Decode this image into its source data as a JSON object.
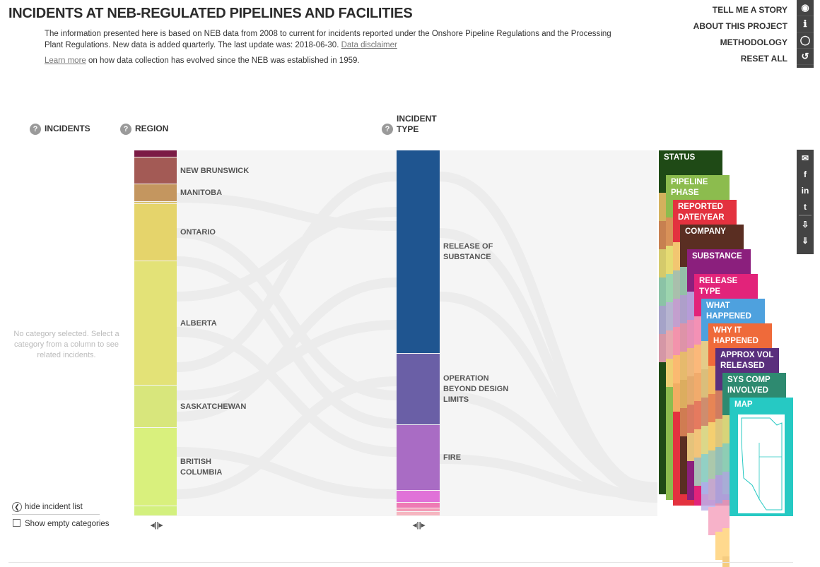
{
  "header": {
    "title": "INCIDENTS AT NEB-REGULATED PIPELINES AND FACILITIES",
    "intro_text": "The information presented here is based on NEB data from 2008 to current for incidents reported under the Onshore Pipeline Regulations and the Processing Plant Regulations. New data is added quarterly. The last update was: 2018-06-30.",
    "disclaimer_link": "Data disclaimer",
    "learn_more_link": "Learn more",
    "learn_more_text": "on how data collection has evolved since the NEB was established in 1959."
  },
  "topnav": {
    "story": "TELL ME A STORY",
    "about": "ABOUT THIS PROJECT",
    "methodology": "METHODOLOGY",
    "reset": "RESET ALL"
  },
  "top_icons": [
    "eye-icon",
    "info-icon",
    "ring-icon",
    "reset-icon"
  ],
  "share_icons": [
    "email-icon",
    "facebook-icon",
    "linkedin-icon",
    "twitter-icon",
    "download-image-icon",
    "download-data-icon"
  ],
  "columns": {
    "incidents": "INCIDENTS",
    "region": "REGION",
    "incident_type": "INCIDENT\nTYPE"
  },
  "incident_list": {
    "empty_message": "No category selected. Select a category from a column to see related incidents.",
    "hide_label": "hide incident list",
    "show_empty_label": "Show empty categories"
  },
  "regions": [
    {
      "label": "",
      "color": "#7b1b45"
    },
    {
      "label": "NEW BRUNSWICK",
      "color": "#a35a55"
    },
    {
      "label": "MANITOBA",
      "color": "#c4965f"
    },
    {
      "label": "",
      "color": "#d9c26b"
    },
    {
      "label": "ONTARIO",
      "color": "#e5d46b"
    },
    {
      "label": "ALBERTA",
      "color": "#e3e277"
    },
    {
      "label": "SASKATCHEWAN",
      "color": "#d8e67c"
    },
    {
      "label": "BRITISH\nCOLUMBIA",
      "color": "#d9f07d"
    },
    {
      "label": "",
      "color": "#d3f07e"
    }
  ],
  "incident_types": [
    {
      "label": "RELEASE OF\nSUBSTANCE",
      "color": "#1f5590"
    },
    {
      "label": "OPERATION\nBEYOND DESIGN\nLIMITS",
      "color": "#6a5fa6"
    },
    {
      "label": "FIRE",
      "color": "#a96cc4"
    },
    {
      "label": "",
      "color": "#e072d8"
    },
    {
      "label": "",
      "color": "#ee7ab4"
    },
    {
      "label": "",
      "color": "#f39ab7"
    },
    {
      "label": "",
      "color": "#f6b6c0"
    }
  ],
  "cards": [
    {
      "label": "STATUS",
      "color": "#1f4a16"
    },
    {
      "label": "PIPELINE\nPHASE",
      "color": "#8cbc4e"
    },
    {
      "label": "REPORTED\nDATE/YEAR",
      "color": "#e3323f"
    },
    {
      "label": "COMPANY",
      "color": "#5a2e22"
    },
    {
      "label": "SUBSTANCE",
      "color": "#8b1f7d"
    },
    {
      "label": "RELEASE TYPE",
      "color": "#e2237a"
    },
    {
      "label": "WHAT\nHAPPENED",
      "color": "#4ea1de"
    },
    {
      "label": "WHY IT\nHAPPENED",
      "color": "#ef6a3a"
    },
    {
      "label": "APPROX VOL\nRELEASED",
      "color": "#5a2f7d"
    },
    {
      "label": "SYS COMP\nINVOLVED",
      "color": "#2e8a70"
    },
    {
      "label": "MAP",
      "color": "#26c9c3"
    }
  ]
}
